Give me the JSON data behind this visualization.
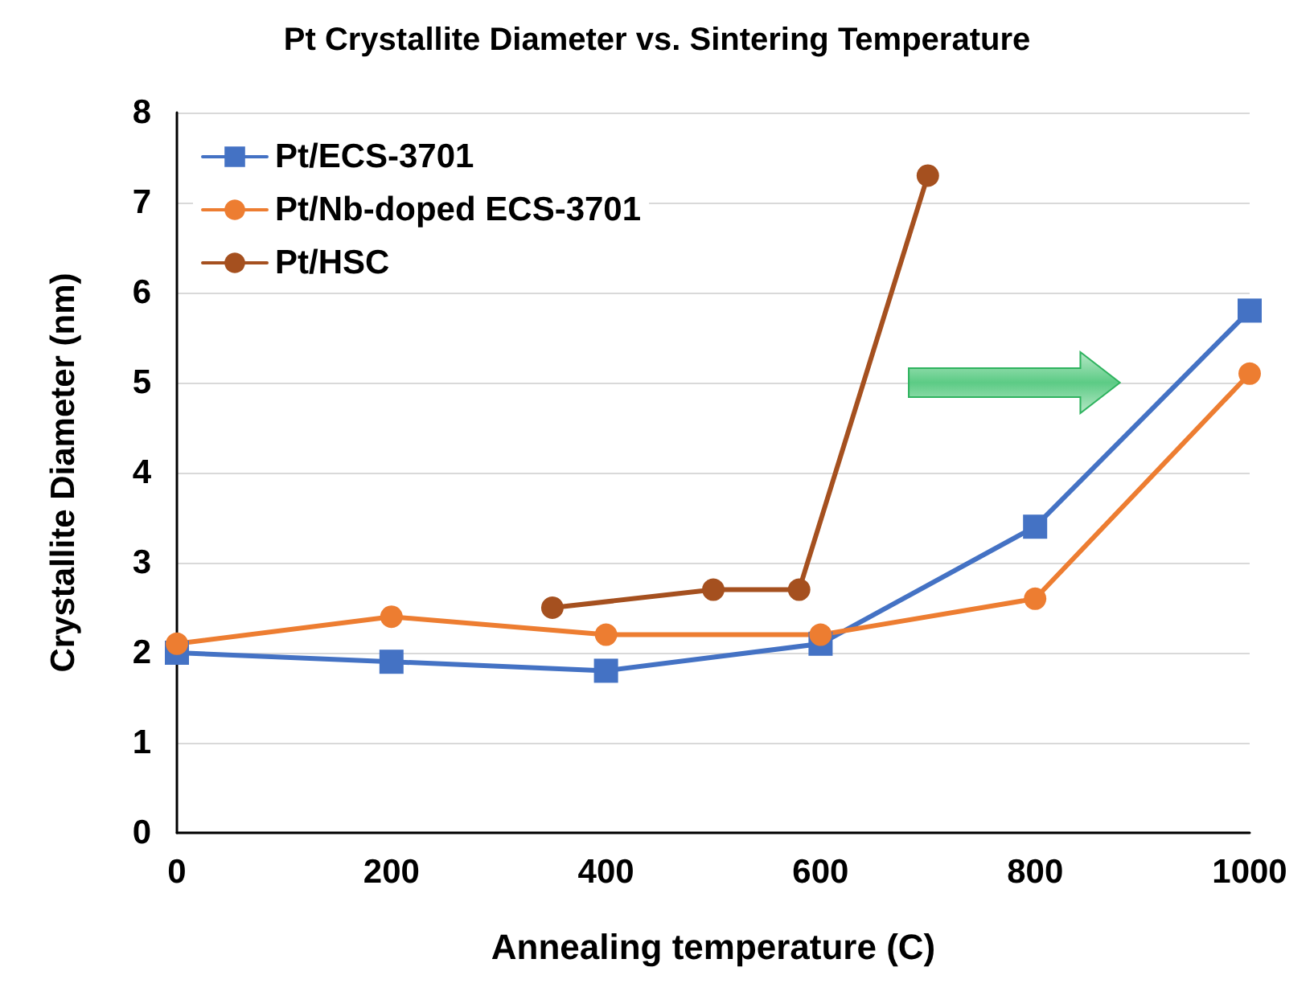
{
  "chart_data": {
    "type": "line",
    "title": "Pt Crystallite Diameter vs. Sintering Temperature",
    "xlabel": "Annealing temperature (C)",
    "ylabel": "Crystallite Diameter (nm)",
    "xlim": [
      0,
      1000
    ],
    "xticks": [
      0,
      200,
      400,
      600,
      800,
      1000
    ],
    "ylim": [
      0,
      8
    ],
    "yticks": [
      0,
      1,
      2,
      3,
      4,
      5,
      6,
      7,
      8
    ],
    "grid": "y",
    "legend": "top left",
    "line_style": "solid",
    "series": [
      {
        "name": "Pt/ECS-3701",
        "color": "#4472c4",
        "marker": "square",
        "x": [
          0,
          200,
          400,
          600,
          800,
          1000
        ],
        "values": [
          2.0,
          1.9,
          1.8,
          2.1,
          3.4,
          5.8
        ]
      },
      {
        "name": "Pt/Nb-doped ECS-3701",
        "color": "#ed7d31",
        "marker": "circle",
        "x": [
          0,
          200,
          400,
          600,
          800,
          1000
        ],
        "values": [
          2.1,
          2.4,
          2.2,
          2.2,
          2.6,
          5.1
        ]
      },
      {
        "name": "Pt/HSC",
        "color": "#a5501f",
        "marker": "circle",
        "x": [
          350,
          500,
          580,
          700
        ],
        "values": [
          2.5,
          2.7,
          2.7,
          7.3
        ]
      }
    ]
  }
}
